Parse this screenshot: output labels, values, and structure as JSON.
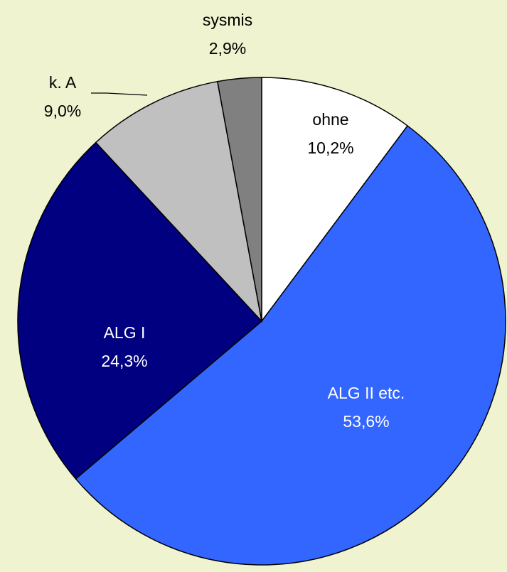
{
  "chart_data": {
    "type": "pie",
    "categories": [
      "ohne",
      "ALG II etc.",
      "ALG I",
      "k. A",
      "sysmis"
    ],
    "values": [
      10.2,
      53.6,
      24.3,
      9.0,
      2.9
    ],
    "value_labels": [
      "10,2%",
      "53,6%",
      "24,3%",
      "9,0%",
      "2,9%"
    ],
    "colors": [
      "#ffffff",
      "#3366ff",
      "#000080",
      "#c0c0c0",
      "#808080"
    ]
  }
}
